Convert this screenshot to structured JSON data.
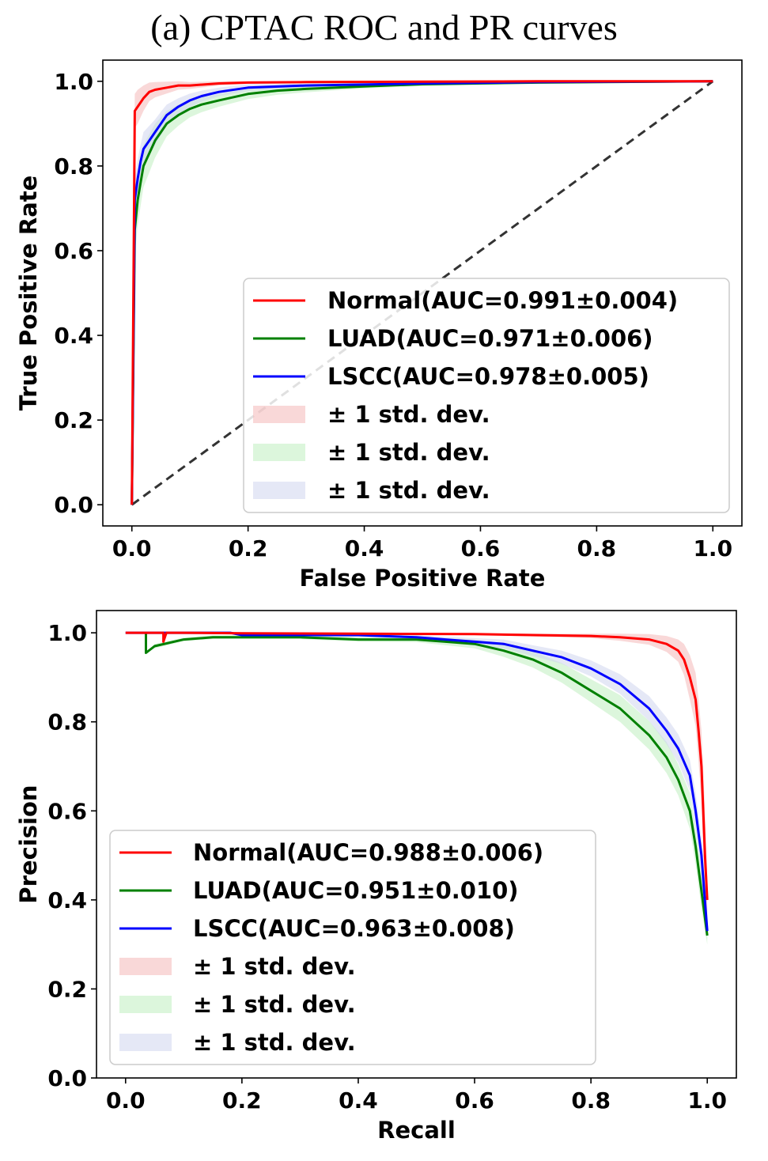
{
  "figure_title": "(a) CPTAC ROC and PR curves",
  "colors": {
    "normal": "#ff0000",
    "luad": "#008000",
    "lscc": "#0000ff",
    "normal_band": "#f4b8b8",
    "luad_band": "#bfeebf",
    "lscc_band": "#cfd6ee",
    "diagonal": "#333333"
  },
  "chart_data": [
    {
      "type": "line",
      "xlabel": "False Positive Rate",
      "ylabel": "True Positive Rate",
      "xlim": [
        -0.05,
        1.05
      ],
      "ylim": [
        -0.05,
        1.05
      ],
      "xticks": [
        "0.0",
        "0.2",
        "0.4",
        "0.6",
        "0.8",
        "1.0"
      ],
      "yticks": [
        "0.0",
        "0.2",
        "0.4",
        "0.6",
        "0.8",
        "1.0"
      ],
      "legend_position": "lower-right",
      "grid": false,
      "series": [
        {
          "name": "Normal(AUC=0.991±0.004)",
          "x": [
            0,
            0.005,
            0.01,
            0.02,
            0.03,
            0.04,
            0.06,
            0.08,
            0.1,
            0.15,
            0.2,
            0.3,
            0.5,
            0.7,
            1.0
          ],
          "y": [
            0,
            0.93,
            0.94,
            0.96,
            0.975,
            0.98,
            0.985,
            0.99,
            0.99,
            0.995,
            0.997,
            0.998,
            0.999,
            1.0,
            1.0
          ],
          "std": [
            0,
            0.04,
            0.04,
            0.03,
            0.022,
            0.018,
            0.014,
            0.01,
            0.008,
            0.005,
            0.003,
            0.002,
            0.001,
            0,
            0
          ]
        },
        {
          "name": "LUAD(AUC=0.971±0.006)",
          "x": [
            0,
            0.005,
            0.01,
            0.015,
            0.02,
            0.03,
            0.04,
            0.05,
            0.06,
            0.08,
            0.1,
            0.12,
            0.15,
            0.2,
            0.25,
            0.3,
            0.4,
            0.5,
            0.7,
            1.0
          ],
          "y": [
            0,
            0.65,
            0.72,
            0.76,
            0.8,
            0.83,
            0.86,
            0.88,
            0.9,
            0.92,
            0.935,
            0.945,
            0.955,
            0.97,
            0.978,
            0.982,
            0.988,
            0.993,
            0.997,
            1.0
          ],
          "std": [
            0,
            0.06,
            0.06,
            0.055,
            0.05,
            0.045,
            0.04,
            0.035,
            0.03,
            0.025,
            0.02,
            0.018,
            0.015,
            0.012,
            0.01,
            0.008,
            0.005,
            0.004,
            0.002,
            0
          ]
        },
        {
          "name": "LSCC(AUC=0.978±0.005)",
          "x": [
            0,
            0.005,
            0.01,
            0.015,
            0.02,
            0.03,
            0.04,
            0.05,
            0.06,
            0.08,
            0.1,
            0.12,
            0.15,
            0.2,
            0.3,
            0.5,
            0.7,
            1.0
          ],
          "y": [
            0,
            0.72,
            0.77,
            0.81,
            0.84,
            0.86,
            0.88,
            0.9,
            0.92,
            0.94,
            0.955,
            0.965,
            0.975,
            0.985,
            0.99,
            0.995,
            0.998,
            1.0
          ],
          "std": [
            0,
            0.05,
            0.045,
            0.04,
            0.04,
            0.035,
            0.03,
            0.028,
            0.025,
            0.02,
            0.016,
            0.013,
            0.01,
            0.008,
            0.005,
            0.003,
            0.002,
            0
          ]
        },
        {
          "name": "± 1 std. dev."
        },
        {
          "name": "± 1 std. dev."
        },
        {
          "name": "± 1 std. dev."
        }
      ],
      "diagonal": {
        "x": [
          0,
          1
        ],
        "y": [
          0,
          1
        ]
      }
    },
    {
      "type": "line",
      "xlabel": "Recall",
      "ylabel": "Precision",
      "xlim": [
        -0.05,
        1.05
      ],
      "ylim": [
        0.0,
        1.05
      ],
      "xticks": [
        "0.0",
        "0.2",
        "0.4",
        "0.6",
        "0.8",
        "1.0"
      ],
      "yticks": [
        "0.0",
        "0.2",
        "0.4",
        "0.6",
        "0.8",
        "1.0"
      ],
      "legend_position": "lower-left",
      "grid": false,
      "series": [
        {
          "name": "Normal(AUC=0.988±0.006)",
          "x": [
            0,
            0.065,
            0.065,
            0.07,
            0.1,
            0.2,
            0.4,
            0.6,
            0.7,
            0.8,
            0.85,
            0.9,
            0.93,
            0.95,
            0.96,
            0.97,
            0.98,
            0.985,
            0.99,
            0.993,
            0.996,
            1.0
          ],
          "y": [
            1.0,
            1.0,
            0.98,
            1.0,
            1.0,
            0.999,
            0.998,
            0.997,
            0.995,
            0.993,
            0.99,
            0.985,
            0.975,
            0.96,
            0.94,
            0.9,
            0.85,
            0.78,
            0.7,
            0.6,
            0.5,
            0.4
          ],
          "std": [
            0,
            0,
            0,
            0,
            0,
            0,
            0.001,
            0.002,
            0.003,
            0.005,
            0.008,
            0.012,
            0.018,
            0.025,
            0.035,
            0.05,
            0.06,
            0.07,
            0.08,
            0.09,
            0.1,
            0.05
          ]
        },
        {
          "name": "LUAD(AUC=0.951±0.010)",
          "x": [
            0.035,
            0.035,
            0.05,
            0.1,
            0.15,
            0.2,
            0.3,
            0.4,
            0.5,
            0.55,
            0.6,
            0.65,
            0.7,
            0.75,
            0.8,
            0.85,
            0.9,
            0.93,
            0.95,
            0.97,
            0.98,
            0.99,
            1.0
          ],
          "y": [
            1.0,
            0.955,
            0.97,
            0.985,
            0.99,
            0.99,
            0.99,
            0.985,
            0.985,
            0.98,
            0.975,
            0.96,
            0.94,
            0.91,
            0.87,
            0.83,
            0.77,
            0.72,
            0.67,
            0.6,
            0.52,
            0.42,
            0.32
          ],
          "std": [
            0,
            0,
            0.005,
            0.004,
            0.004,
            0.004,
            0.004,
            0.005,
            0.006,
            0.008,
            0.01,
            0.014,
            0.018,
            0.022,
            0.026,
            0.03,
            0.032,
            0.035,
            0.035,
            0.04,
            0.04,
            0.04,
            0.02
          ]
        },
        {
          "name": "LSCC(AUC=0.963±0.008)",
          "x": [
            0,
            0.18,
            0.2,
            0.3,
            0.4,
            0.5,
            0.55,
            0.6,
            0.65,
            0.7,
            0.75,
            0.8,
            0.85,
            0.9,
            0.93,
            0.95,
            0.97,
            0.98,
            0.99,
            1.0
          ],
          "y": [
            1.0,
            1.0,
            0.995,
            0.995,
            0.995,
            0.99,
            0.985,
            0.98,
            0.975,
            0.96,
            0.945,
            0.92,
            0.885,
            0.83,
            0.78,
            0.74,
            0.68,
            0.6,
            0.5,
            0.33
          ],
          "std": [
            0,
            0,
            0.003,
            0.004,
            0.004,
            0.005,
            0.006,
            0.008,
            0.01,
            0.012,
            0.015,
            0.018,
            0.022,
            0.028,
            0.03,
            0.032,
            0.035,
            0.04,
            0.04,
            0.02
          ]
        },
        {
          "name": "± 1 std. dev."
        },
        {
          "name": "± 1 std. dev."
        },
        {
          "name": "± 1 std. dev."
        }
      ]
    }
  ]
}
